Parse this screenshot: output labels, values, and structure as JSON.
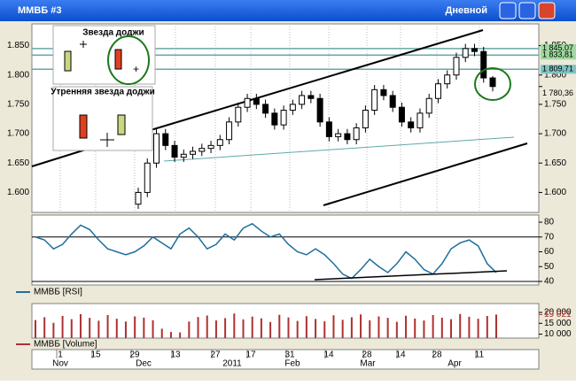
{
  "window": {
    "title": "ММВБ #3",
    "timeframe": "Дневной"
  },
  "x_axis": {
    "days": [
      "1",
      "15",
      "29",
      "13",
      "27",
      "17",
      "31",
      "14",
      "28",
      "14",
      "28",
      "11"
    ],
    "months": [
      "Nov",
      "Dec",
      "2011",
      "Feb",
      "Mar",
      "Apr"
    ]
  },
  "chart_data": [
    {
      "type": "candlestick",
      "annotations": [
        "Звезда доджи",
        "Утренняя звезда доджи"
      ],
      "categories": [
        null,
        null,
        null,
        null,
        null,
        null,
        null,
        null,
        null,
        null,
        null,
        null,
        null,
        null,
        null,
        null,
        null,
        null,
        null,
        null,
        null,
        null,
        null,
        null,
        null,
        null,
        null,
        null,
        null,
        null,
        null,
        null,
        null,
        null,
        null,
        null,
        null,
        null,
        null,
        null
      ],
      "open": [
        1580,
        1600,
        1650,
        1700,
        1680,
        1660,
        1665,
        1670,
        1675,
        1680,
        1690,
        1720,
        1745,
        1760,
        1750,
        1735,
        1715,
        1740,
        1750,
        1765,
        1760,
        1720,
        1695,
        1700,
        1690,
        1710,
        1740,
        1775,
        1765,
        1745,
        1720,
        1710,
        1735,
        1760,
        1785,
        1800,
        1830,
        1845,
        1840,
        1795
      ],
      "high": [
        1608,
        1658,
        1708,
        1708,
        1688,
        1673,
        1678,
        1683,
        1688,
        1698,
        1728,
        1753,
        1768,
        1768,
        1758,
        1743,
        1748,
        1758,
        1773,
        1773,
        1768,
        1728,
        1708,
        1708,
        1718,
        1748,
        1783,
        1783,
        1773,
        1753,
        1728,
        1743,
        1768,
        1793,
        1808,
        1838,
        1853,
        1853,
        1848,
        1798
      ],
      "low": [
        1572,
        1592,
        1642,
        1672,
        1652,
        1652,
        1657,
        1662,
        1667,
        1672,
        1682,
        1712,
        1737,
        1742,
        1727,
        1707,
        1707,
        1732,
        1742,
        1752,
        1712,
        1687,
        1687,
        1682,
        1682,
        1702,
        1732,
        1757,
        1737,
        1712,
        1702,
        1702,
        1727,
        1752,
        1777,
        1792,
        1822,
        1832,
        1787,
        1772
      ],
      "close": [
        1600,
        1650,
        1700,
        1680,
        1660,
        1665,
        1670,
        1675,
        1680,
        1690,
        1720,
        1745,
        1760,
        1750,
        1735,
        1715,
        1740,
        1750,
        1765,
        1760,
        1720,
        1695,
        1700,
        1690,
        1710,
        1740,
        1775,
        1765,
        1745,
        1720,
        1710,
        1735,
        1760,
        1785,
        1800,
        1830,
        1845,
        1840,
        1795,
        1780.36
      ],
      "up_color": "#ffffff",
      "down_color": "#000000",
      "ylim": [
        1566,
        1887
      ],
      "yticks": [
        {
          "value": 1600,
          "label": "1.600"
        },
        {
          "value": 1650,
          "label": "1.650"
        },
        {
          "value": 1700,
          "label": "1.700"
        },
        {
          "value": 1750,
          "label": "1.750"
        },
        {
          "value": 1800,
          "label": "1.800"
        },
        {
          "value": 1850,
          "label": "1.850"
        }
      ],
      "levels": [
        {
          "value": 1845.07,
          "label": "1 845,07",
          "color": "#9fd9a0"
        },
        {
          "value": 1833.81,
          "label": "1 833,81",
          "color": "#9fd9a0"
        },
        {
          "value": 1809.71,
          "label": "1 809,71",
          "color": "#7fc3c3"
        }
      ],
      "last": {
        "value": 1780.36,
        "label": "1 780,36"
      },
      "grid": true
    },
    {
      "type": "line",
      "series": [
        {
          "name": "ММВБ [RSI]",
          "color": "#1f6f9b",
          "values": [
            70,
            68,
            62,
            65,
            72,
            78,
            75,
            68,
            62,
            60,
            58,
            60,
            64,
            70,
            66,
            62,
            72,
            76,
            70,
            62,
            65,
            72,
            68,
            76,
            79,
            74,
            70,
            72,
            65,
            60,
            58,
            62,
            58,
            52,
            45,
            42,
            48,
            55,
            50,
            46,
            52,
            60,
            55,
            48,
            45,
            52,
            62,
            66,
            68,
            64,
            52,
            46
          ]
        }
      ],
      "ylim": [
        37.6,
        84.8
      ],
      "yticks": [
        40,
        50,
        60,
        70,
        80
      ],
      "ref_lines": [
        70,
        40
      ]
    },
    {
      "type": "bar",
      "series": [
        {
          "name": "ММВБ [Volume]",
          "color": "#b03030",
          "values": [
            16500,
            17800,
            15200,
            18400,
            16900,
            19200,
            17500,
            16200,
            18800,
            17100,
            15800,
            18200,
            17600,
            16400,
            12500,
            11000,
            10800,
            15800,
            17900,
            18600,
            16300,
            17400,
            19500,
            16800,
            18100,
            17300,
            15600,
            18900,
            17700,
            16100,
            18300,
            17000,
            15900,
            18700,
            16600,
            17800,
            19100,
            16400,
            18200,
            17500,
            15700,
            18500,
            17200,
            16300,
            18800,
            17600,
            16900,
            19300,
            18000,
            17100,
            18400,
            19021
          ]
        }
      ],
      "ylim": [
        8182,
        24090
      ],
      "yticks": [
        {
          "value": 10000,
          "label": "10 000"
        },
        {
          "value": 15000,
          "label": "15 000"
        },
        {
          "value": 20000,
          "label": "20 000"
        }
      ],
      "last": {
        "value": 19021,
        "label": "19 021"
      }
    }
  ]
}
